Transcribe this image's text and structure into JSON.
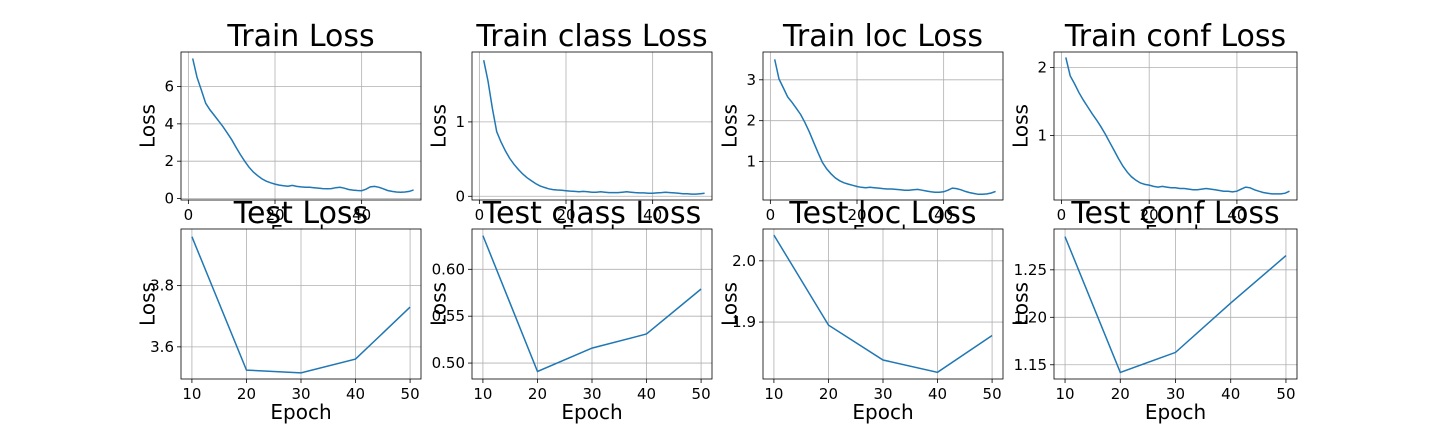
{
  "chart_data": [
    {
      "type": "line",
      "title": "Train Loss",
      "xlabel": "Epoch",
      "ylabel": "Loss",
      "xlim": [
        -1.7,
        53.7
      ],
      "ylim": [
        -0.08,
        7.85
      ],
      "xticks": [
        0,
        20,
        40
      ],
      "xtick_labels": [
        "0",
        "20",
        "40"
      ],
      "yticks": [
        0,
        2,
        4,
        6
      ],
      "ytick_labels": [
        "0",
        "2",
        "4",
        "6"
      ],
      "grid": true,
      "series": [
        {
          "x": [
            1,
            2,
            3,
            4,
            5,
            6,
            7,
            8,
            9,
            10,
            11,
            12,
            13,
            14,
            15,
            16,
            17,
            18,
            19,
            20,
            21,
            22,
            23,
            24,
            25,
            26,
            27,
            28,
            29,
            30,
            31,
            32,
            33,
            34,
            35,
            36,
            37,
            38,
            39,
            40,
            41,
            42,
            43,
            44,
            45,
            46,
            47,
            48,
            49,
            50,
            51,
            52
          ],
          "values": [
            7.5,
            6.5,
            5.8,
            5.1,
            4.75,
            4.45,
            4.15,
            3.85,
            3.5,
            3.15,
            2.75,
            2.35,
            2.0,
            1.68,
            1.42,
            1.22,
            1.05,
            0.93,
            0.84,
            0.77,
            0.72,
            0.68,
            0.66,
            0.7,
            0.65,
            0.62,
            0.6,
            0.6,
            0.58,
            0.56,
            0.53,
            0.52,
            0.53,
            0.58,
            0.6,
            0.55,
            0.48,
            0.45,
            0.43,
            0.42,
            0.5,
            0.62,
            0.65,
            0.6,
            0.52,
            0.43,
            0.38,
            0.35,
            0.34,
            0.35,
            0.38,
            0.46
          ]
        }
      ]
    },
    {
      "type": "line",
      "title": "Train class Loss",
      "xlabel": "Epoch",
      "ylabel": "Loss",
      "xlim": [
        -1.7,
        53.7
      ],
      "ylim": [
        -0.05,
        1.94
      ],
      "xticks": [
        0,
        20,
        40
      ],
      "xtick_labels": [
        "0",
        "20",
        "40"
      ],
      "yticks": [
        0,
        1
      ],
      "ytick_labels": [
        "0",
        "1"
      ],
      "grid": true,
      "series": [
        {
          "x": [
            1,
            2,
            3,
            4,
            5,
            6,
            7,
            8,
            9,
            10,
            11,
            12,
            13,
            14,
            15,
            16,
            17,
            18,
            19,
            20,
            21,
            22,
            23,
            24,
            25,
            26,
            27,
            28,
            29,
            30,
            31,
            32,
            33,
            34,
            35,
            36,
            37,
            38,
            39,
            40,
            41,
            42,
            43,
            44,
            45,
            46,
            47,
            48,
            49,
            50,
            51,
            52
          ],
          "values": [
            1.83,
            1.55,
            1.18,
            0.87,
            0.73,
            0.61,
            0.51,
            0.43,
            0.36,
            0.3,
            0.25,
            0.21,
            0.17,
            0.14,
            0.12,
            0.1,
            0.09,
            0.085,
            0.08,
            0.075,
            0.07,
            0.065,
            0.06,
            0.065,
            0.06,
            0.055,
            0.055,
            0.06,
            0.055,
            0.05,
            0.05,
            0.05,
            0.055,
            0.06,
            0.055,
            0.05,
            0.045,
            0.045,
            0.04,
            0.04,
            0.045,
            0.05,
            0.055,
            0.05,
            0.045,
            0.04,
            0.035,
            0.035,
            0.03,
            0.03,
            0.035,
            0.04
          ]
        }
      ]
    },
    {
      "type": "line",
      "title": "Train loc Loss",
      "xlabel": "Epoch",
      "ylabel": "Loss",
      "xlim": [
        -1.7,
        53.7
      ],
      "ylim": [
        0.06,
        3.68
      ],
      "xticks": [
        0,
        20,
        40
      ],
      "xtick_labels": [
        "0",
        "20",
        "40"
      ],
      "yticks": [
        1,
        2,
        3
      ],
      "ytick_labels": [
        "1",
        "2",
        "3"
      ],
      "grid": true,
      "series": [
        {
          "x": [
            1,
            2,
            3,
            4,
            5,
            6,
            7,
            8,
            9,
            10,
            11,
            12,
            13,
            14,
            15,
            16,
            17,
            18,
            19,
            20,
            21,
            22,
            23,
            24,
            25,
            26,
            27,
            28,
            29,
            30,
            31,
            32,
            33,
            34,
            35,
            36,
            37,
            38,
            39,
            40,
            41,
            42,
            43,
            44,
            45,
            46,
            47,
            48,
            49,
            50,
            51,
            52
          ],
          "values": [
            3.5,
            3.02,
            2.8,
            2.58,
            2.45,
            2.3,
            2.15,
            1.95,
            1.72,
            1.47,
            1.22,
            0.98,
            0.82,
            0.7,
            0.6,
            0.53,
            0.48,
            0.45,
            0.42,
            0.39,
            0.37,
            0.36,
            0.37,
            0.36,
            0.35,
            0.34,
            0.33,
            0.33,
            0.32,
            0.31,
            0.3,
            0.3,
            0.31,
            0.32,
            0.3,
            0.28,
            0.26,
            0.25,
            0.25,
            0.26,
            0.3,
            0.35,
            0.34,
            0.31,
            0.27,
            0.24,
            0.22,
            0.2,
            0.2,
            0.21,
            0.23,
            0.27
          ]
        }
      ]
    },
    {
      "type": "line",
      "title": "Train conf Loss",
      "xlabel": "Epoch",
      "ylabel": "Loss",
      "xlim": [
        -1.7,
        53.7
      ],
      "ylim": [
        0.05,
        2.23
      ],
      "xticks": [
        0,
        20,
        40
      ],
      "xtick_labels": [
        "0",
        "20",
        "40"
      ],
      "yticks": [
        1,
        2
      ],
      "ytick_labels": [
        "1",
        "2"
      ],
      "grid": true,
      "series": [
        {
          "x": [
            1,
            2,
            3,
            4,
            5,
            6,
            7,
            8,
            9,
            10,
            11,
            12,
            13,
            14,
            15,
            16,
            17,
            18,
            19,
            20,
            21,
            22,
            23,
            24,
            25,
            26,
            27,
            28,
            29,
            30,
            31,
            32,
            33,
            34,
            35,
            36,
            37,
            38,
            39,
            40,
            41,
            42,
            43,
            44,
            45,
            46,
            47,
            48,
            49,
            50,
            51,
            52
          ],
          "values": [
            2.15,
            1.88,
            1.76,
            1.63,
            1.52,
            1.42,
            1.32,
            1.23,
            1.13,
            1.02,
            0.9,
            0.78,
            0.66,
            0.55,
            0.46,
            0.39,
            0.34,
            0.3,
            0.28,
            0.27,
            0.25,
            0.24,
            0.25,
            0.24,
            0.23,
            0.23,
            0.22,
            0.22,
            0.21,
            0.2,
            0.2,
            0.21,
            0.22,
            0.21,
            0.2,
            0.19,
            0.18,
            0.18,
            0.17,
            0.18,
            0.21,
            0.24,
            0.23,
            0.2,
            0.18,
            0.16,
            0.15,
            0.14,
            0.14,
            0.14,
            0.15,
            0.18
          ]
        }
      ]
    },
    {
      "type": "line",
      "title": "Test Loss",
      "xlabel": "Epoch",
      "ylabel": "Loss",
      "xlim": [
        8,
        52
      ],
      "ylim": [
        3.495,
        3.985
      ],
      "xticks": [
        10,
        20,
        30,
        40,
        50
      ],
      "xtick_labels": [
        "10",
        "20",
        "30",
        "40",
        "50"
      ],
      "yticks": [
        3.6,
        3.8
      ],
      "ytick_labels": [
        "3.6",
        "3.8"
      ],
      "grid": true,
      "series": [
        {
          "x": [
            10,
            20,
            30,
            40,
            50
          ],
          "values": [
            3.96,
            3.524,
            3.515,
            3.56,
            3.73
          ]
        }
      ]
    },
    {
      "type": "line",
      "title": "Test class Loss",
      "xlabel": "Epoch",
      "ylabel": "Loss",
      "xlim": [
        8,
        52
      ],
      "ylim": [
        0.483,
        0.643
      ],
      "xticks": [
        10,
        20,
        30,
        40,
        50
      ],
      "xtick_labels": [
        "10",
        "20",
        "30",
        "40",
        "50"
      ],
      "yticks": [
        0.5,
        0.55,
        0.6
      ],
      "ytick_labels": [
        "0.50",
        "0.55",
        "0.60"
      ],
      "grid": true,
      "series": [
        {
          "x": [
            10,
            20,
            30,
            40,
            50
          ],
          "values": [
            0.636,
            0.491,
            0.516,
            0.531,
            0.579
          ]
        }
      ]
    },
    {
      "type": "line",
      "title": "Test loc Loss",
      "xlabel": "Epoch",
      "ylabel": "Loss",
      "xlim": [
        8,
        52
      ],
      "ylim": [
        1.807,
        2.052
      ],
      "xticks": [
        10,
        20,
        30,
        40,
        50
      ],
      "xtick_labels": [
        "10",
        "20",
        "30",
        "40",
        "50"
      ],
      "yticks": [
        1.9,
        2.0
      ],
      "ytick_labels": [
        "1.9",
        "2.0"
      ],
      "grid": true,
      "series": [
        {
          "x": [
            10,
            20,
            30,
            40,
            50
          ],
          "values": [
            2.042,
            1.895,
            1.838,
            1.818,
            1.878
          ]
        }
      ]
    },
    {
      "type": "line",
      "title": "Test conf Loss",
      "xlabel": "Epoch",
      "ylabel": "Loss",
      "xlim": [
        8,
        52
      ],
      "ylim": [
        1.135,
        1.293
      ],
      "xticks": [
        10,
        20,
        30,
        40,
        50
      ],
      "xtick_labels": [
        "10",
        "20",
        "30",
        "40",
        "50"
      ],
      "yticks": [
        1.15,
        1.2,
        1.25
      ],
      "ytick_labels": [
        "1.15",
        "1.20",
        "1.25"
      ],
      "grid": true,
      "series": [
        {
          "x": [
            10,
            20,
            30,
            40,
            50
          ],
          "values": [
            1.285,
            1.142,
            1.163,
            1.215,
            1.265
          ]
        }
      ]
    }
  ]
}
